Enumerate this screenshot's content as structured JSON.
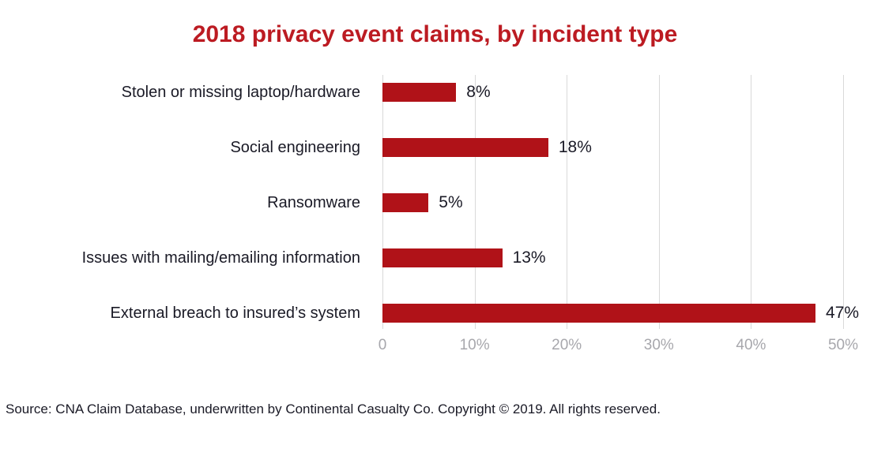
{
  "chart_data": {
    "type": "bar",
    "orientation": "horizontal",
    "title": "2018 privacy event claims, by incident type",
    "categories": [
      "Stolen or missing laptop/hardware",
      "Social engineering",
      "Ransomware",
      "Issues with mailing/emailing information",
      "External breach to insured’s system"
    ],
    "values": [
      8,
      18,
      5,
      13,
      47
    ],
    "value_labels": [
      "8%",
      "18%",
      "5%",
      "13%",
      "47%"
    ],
    "xlabel": "",
    "ylabel": "",
    "xlim": [
      0,
      50
    ],
    "x_ticks": [
      0,
      10,
      20,
      30,
      40,
      50
    ],
    "x_tick_labels": [
      "0",
      "10%",
      "20%",
      "30%",
      "40%",
      "50%"
    ],
    "grid": "vertical-only",
    "legend": "none"
  },
  "source": "Source: CNA Claim Database, underwritten by Continental Casualty Co. Copyright © 2019. All rights reserved.",
  "colors": {
    "bar": "#b01218",
    "title": "#bc1b22",
    "grid": "#d9d9d9",
    "tick_label": "#a7a7ac",
    "text": "#1a1a26"
  }
}
